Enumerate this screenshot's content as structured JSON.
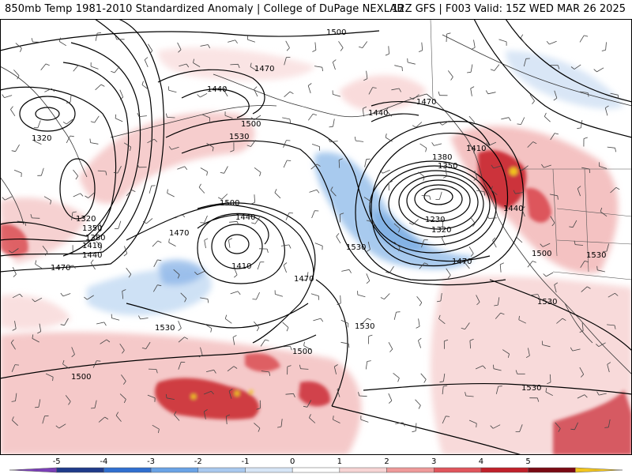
{
  "header": {
    "title_left": "850mb Temp 1981-2010 Standardized Anomaly | College of DuPage NEXLAB",
    "title_right": "12Z GFS | F003 Valid: 15Z WED MAR 26 2025"
  },
  "map": {
    "field": "850mb temperature standardized anomaly",
    "overlays": [
      "height contours",
      "wind barbs",
      "coastlines",
      "borders"
    ],
    "contour_labels": [
      {
        "id": "c1500a",
        "text": "1500"
      },
      {
        "id": "c1470a",
        "text": "1470"
      },
      {
        "id": "c1440a",
        "text": "1440"
      },
      {
        "id": "c1320a",
        "text": "1320"
      },
      {
        "id": "c1500b",
        "text": "1500"
      },
      {
        "id": "c1530a",
        "text": "1530"
      },
      {
        "id": "c1440b",
        "text": "1440"
      },
      {
        "id": "c1470b",
        "text": "1470"
      },
      {
        "id": "c1410a",
        "text": "1410"
      },
      {
        "id": "c1380a",
        "text": "1380"
      },
      {
        "id": "c1350a",
        "text": "1350"
      },
      {
        "id": "c1230a",
        "text": "1230"
      },
      {
        "id": "c1320b",
        "text": "1320"
      },
      {
        "id": "c1440c",
        "text": "1440"
      },
      {
        "id": "c1500c",
        "text": "1500"
      },
      {
        "id": "c1530b",
        "text": "1530"
      },
      {
        "id": "c1530c",
        "text": "1530"
      },
      {
        "id": "c1470c",
        "text": "1470"
      },
      {
        "id": "c1320c",
        "text": "1320"
      },
      {
        "id": "c1350b",
        "text": "1350"
      },
      {
        "id": "c1380b",
        "text": "1380"
      },
      {
        "id": "c1410b",
        "text": "1410"
      },
      {
        "id": "c1440d",
        "text": "1440"
      },
      {
        "id": "c1470d",
        "text": "1470"
      },
      {
        "id": "c1500d",
        "text": "1500"
      },
      {
        "id": "c1440e",
        "text": "1440"
      },
      {
        "id": "c1410c",
        "text": "1410"
      },
      {
        "id": "c1470e",
        "text": "1470"
      },
      {
        "id": "c1530d",
        "text": "1530"
      },
      {
        "id": "c1470f",
        "text": "1470"
      },
      {
        "id": "c1500e",
        "text": "1500"
      },
      {
        "id": "c1530e",
        "text": "1530"
      },
      {
        "id": "c1500f",
        "text": "1500"
      },
      {
        "id": "c1530f",
        "text": "1530"
      },
      {
        "id": "c1530g",
        "text": "1530"
      }
    ]
  },
  "legend": {
    "ticks": [
      "-5",
      "-4",
      "-3",
      "-2",
      "-1",
      "0",
      "1",
      "2",
      "3",
      "4",
      "5"
    ],
    "colors": [
      "#7b3fb8",
      "#1f3a8a",
      "#2f6fd0",
      "#6aa3e6",
      "#a9c9ef",
      "#d6e5f6",
      "#ffffff",
      "#f7d4d4",
      "#ef9a9a",
      "#e0555c",
      "#c0202a",
      "#7a0a14",
      "#f2c51e"
    ]
  }
}
